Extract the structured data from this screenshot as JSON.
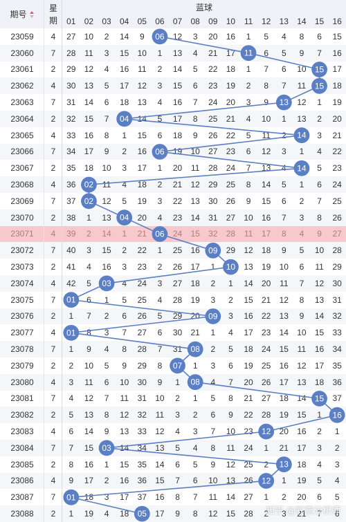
{
  "header": {
    "issue_label": "期号",
    "sort_icon": "sort-arrows-icon",
    "weekday_label": "星期",
    "blue_label": "蓝球",
    "columns": [
      "01",
      "02",
      "03",
      "04",
      "05",
      "06",
      "07",
      "08",
      "09",
      "10",
      "11",
      "12",
      "13",
      "14",
      "15",
      "16"
    ]
  },
  "highlight_issue": "23071",
  "rows": [
    {
      "issue": "23059",
      "day": "4",
      "values": [
        "27",
        "10",
        "2",
        "14",
        "9",
        "06",
        "12",
        "3",
        "20",
        "16",
        "1",
        "5",
        "4",
        "8",
        "6",
        "15"
      ],
      "hit": 6
    },
    {
      "issue": "23060",
      "day": "7",
      "values": [
        "28",
        "11",
        "3",
        "15",
        "10",
        "1",
        "13",
        "4",
        "21",
        "17",
        "11",
        "6",
        "5",
        "9",
        "7",
        "16"
      ],
      "hit": 11
    },
    {
      "issue": "23061",
      "day": "2",
      "values": [
        "29",
        "12",
        "4",
        "16",
        "11",
        "2",
        "14",
        "5",
        "22",
        "18",
        "1",
        "7",
        "6",
        "10",
        "15",
        "17"
      ],
      "hit": 15
    },
    {
      "issue": "23062",
      "day": "4",
      "values": [
        "30",
        "13",
        "5",
        "17",
        "12",
        "3",
        "15",
        "6",
        "23",
        "19",
        "2",
        "8",
        "7",
        "11",
        "15",
        "18"
      ],
      "hit": 15
    },
    {
      "issue": "23063",
      "day": "7",
      "values": [
        "31",
        "14",
        "6",
        "18",
        "13",
        "4",
        "16",
        "7",
        "24",
        "20",
        "3",
        "9",
        "13",
        "12",
        "1",
        "19"
      ],
      "hit": 13
    },
    {
      "issue": "23064",
      "day": "2",
      "values": [
        "32",
        "15",
        "7",
        "04",
        "14",
        "5",
        "17",
        "8",
        "25",
        "21",
        "4",
        "10",
        "1",
        "13",
        "2",
        "20"
      ],
      "hit": 4
    },
    {
      "issue": "23065",
      "day": "4",
      "values": [
        "33",
        "16",
        "8",
        "1",
        "15",
        "6",
        "18",
        "9",
        "26",
        "22",
        "5",
        "11",
        "2",
        "14",
        "3",
        "21"
      ],
      "hit": 14
    },
    {
      "issue": "23066",
      "day": "7",
      "values": [
        "34",
        "17",
        "9",
        "2",
        "16",
        "06",
        "19",
        "10",
        "27",
        "23",
        "6",
        "12",
        "3",
        "1",
        "4",
        "22"
      ],
      "hit": 6
    },
    {
      "issue": "23067",
      "day": "2",
      "values": [
        "35",
        "18",
        "10",
        "3",
        "17",
        "1",
        "20",
        "11",
        "28",
        "24",
        "7",
        "13",
        "4",
        "14",
        "5",
        "23"
      ],
      "hit": 14
    },
    {
      "issue": "23068",
      "day": "4",
      "values": [
        "36",
        "02",
        "11",
        "4",
        "18",
        "2",
        "21",
        "12",
        "29",
        "25",
        "8",
        "14",
        "5",
        "1",
        "6",
        "24"
      ],
      "hit": 2
    },
    {
      "issue": "23069",
      "day": "7",
      "values": [
        "37",
        "02",
        "12",
        "5",
        "19",
        "3",
        "22",
        "13",
        "30",
        "26",
        "9",
        "15",
        "6",
        "2",
        "7",
        "25"
      ],
      "hit": 2
    },
    {
      "issue": "23070",
      "day": "2",
      "values": [
        "38",
        "1",
        "13",
        "04",
        "20",
        "4",
        "23",
        "14",
        "31",
        "27",
        "10",
        "16",
        "7",
        "3",
        "8",
        "26"
      ],
      "hit": 4
    },
    {
      "issue": "23071",
      "day": "4",
      "values": [
        "39",
        "2",
        "14",
        "1",
        "21",
        "06",
        "24",
        "15",
        "32",
        "28",
        "11",
        "17",
        "8",
        "4",
        "9",
        "27"
      ],
      "hit": 6
    },
    {
      "issue": "23072",
      "day": "7",
      "values": [
        "40",
        "3",
        "15",
        "2",
        "22",
        "1",
        "25",
        "16",
        "09",
        "29",
        "12",
        "18",
        "9",
        "5",
        "10",
        "28"
      ],
      "hit": 9
    },
    {
      "issue": "23073",
      "day": "2",
      "values": [
        "41",
        "4",
        "16",
        "3",
        "23",
        "2",
        "26",
        "17",
        "1",
        "10",
        "13",
        "19",
        "10",
        "6",
        "11",
        "29"
      ],
      "hit": 10
    },
    {
      "issue": "23074",
      "day": "4",
      "values": [
        "42",
        "5",
        "03",
        "4",
        "24",
        "3",
        "27",
        "18",
        "2",
        "1",
        "14",
        "20",
        "11",
        "7",
        "12",
        "30"
      ],
      "hit": 3
    },
    {
      "issue": "23075",
      "day": "7",
      "values": [
        "01",
        "6",
        "1",
        "5",
        "25",
        "4",
        "28",
        "19",
        "3",
        "2",
        "15",
        "21",
        "12",
        "8",
        "13",
        "31"
      ],
      "hit": 1
    },
    {
      "issue": "23076",
      "day": "2",
      "values": [
        "1",
        "7",
        "2",
        "6",
        "26",
        "5",
        "29",
        "20",
        "09",
        "3",
        "16",
        "22",
        "13",
        "9",
        "14",
        "32"
      ],
      "hit": 9
    },
    {
      "issue": "23077",
      "day": "4",
      "values": [
        "01",
        "8",
        "3",
        "7",
        "27",
        "6",
        "30",
        "21",
        "1",
        "4",
        "17",
        "23",
        "14",
        "10",
        "15",
        "33"
      ],
      "hit": 1
    },
    {
      "issue": "23078",
      "day": "7",
      "values": [
        "1",
        "9",
        "4",
        "8",
        "28",
        "7",
        "31",
        "08",
        "2",
        "5",
        "18",
        "24",
        "15",
        "11",
        "16",
        "34"
      ],
      "hit": 8
    },
    {
      "issue": "23079",
      "day": "2",
      "values": [
        "2",
        "10",
        "5",
        "9",
        "29",
        "8",
        "07",
        "1",
        "3",
        "6",
        "19",
        "25",
        "16",
        "12",
        "17",
        "35"
      ],
      "hit": 7
    },
    {
      "issue": "23080",
      "day": "4",
      "values": [
        "3",
        "11",
        "6",
        "10",
        "30",
        "9",
        "1",
        "08",
        "4",
        "7",
        "20",
        "26",
        "17",
        "13",
        "18",
        "36"
      ],
      "hit": 8
    },
    {
      "issue": "23081",
      "day": "7",
      "values": [
        "4",
        "12",
        "7",
        "11",
        "31",
        "10",
        "2",
        "1",
        "5",
        "8",
        "21",
        "27",
        "18",
        "14",
        "15",
        "37"
      ],
      "hit": 15
    },
    {
      "issue": "23082",
      "day": "2",
      "values": [
        "5",
        "13",
        "8",
        "12",
        "32",
        "11",
        "3",
        "2",
        "6",
        "9",
        "22",
        "28",
        "19",
        "15",
        "1",
        "16"
      ],
      "hit": 16
    },
    {
      "issue": "23083",
      "day": "4",
      "values": [
        "6",
        "14",
        "9",
        "13",
        "33",
        "12",
        "4",
        "3",
        "7",
        "10",
        "23",
        "12",
        "20",
        "16",
        "2",
        "1"
      ],
      "hit": 12
    },
    {
      "issue": "23084",
      "day": "7",
      "values": [
        "7",
        "15",
        "03",
        "14",
        "34",
        "13",
        "5",
        "4",
        "8",
        "11",
        "24",
        "1",
        "21",
        "17",
        "3",
        "2"
      ],
      "hit": 3
    },
    {
      "issue": "23085",
      "day": "2",
      "values": [
        "8",
        "16",
        "1",
        "15",
        "35",
        "14",
        "6",
        "5",
        "9",
        "12",
        "25",
        "2",
        "13",
        "18",
        "4",
        "3"
      ],
      "hit": 13
    },
    {
      "issue": "23086",
      "day": "4",
      "values": [
        "9",
        "17",
        "2",
        "16",
        "36",
        "15",
        "7",
        "6",
        "10",
        "13",
        "26",
        "12",
        "1",
        "19",
        "5",
        "4"
      ],
      "hit": 12
    },
    {
      "issue": "23087",
      "day": "7",
      "values": [
        "01",
        "18",
        "3",
        "17",
        "37",
        "16",
        "8",
        "7",
        "11",
        "14",
        "27",
        "1",
        "2",
        "20",
        "6",
        "5"
      ],
      "hit": 1
    },
    {
      "issue": "23088",
      "day": "2",
      "values": [
        "1",
        "19",
        "4",
        "18",
        "05",
        "17",
        "9",
        "8",
        "12",
        "15",
        "28",
        "2",
        "3",
        "21",
        "7",
        "6"
      ],
      "hit": 5
    }
  ],
  "watermark": "知乎 @彩票分析师",
  "colors": {
    "ball": "#5b7fc4",
    "line": "#5b7fc4",
    "header_bg": "#f0f2f7",
    "row_alt": "#f4f6fa",
    "highlight_bg": "#f6c9cc",
    "highlight_text": "#b77"
  }
}
